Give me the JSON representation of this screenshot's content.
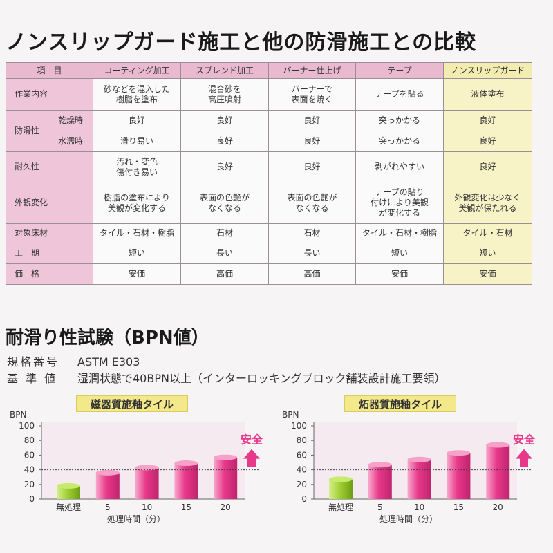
{
  "title": "ノンスリップガード施工と他の防滑施工との比較",
  "comparison": {
    "item_header": "項　目",
    "columns": [
      "コーティング加工",
      "スプレンド加工",
      "バーナー仕上げ",
      "テープ",
      "ノンスリップガード"
    ],
    "rows": [
      {
        "label": "作業内容",
        "values": [
          "砂などを混入した\n樹脂を塗布",
          "混合砂を\n高圧噴射",
          "バーナーで\n表面を焼く",
          "テープを貼る",
          "液体塗布"
        ]
      },
      {
        "label": "防滑性",
        "sub": "乾燥時",
        "values": [
          "良好",
          "良好",
          "良好",
          "突っかかる",
          "良好"
        ]
      },
      {
        "sub": "水濡時",
        "values": [
          "滑り易い",
          "良好",
          "良好",
          "突っかかる",
          "良好"
        ]
      },
      {
        "label": "耐久性",
        "values": [
          "汚れ・変色\n傷付き易い",
          "良好",
          "良好",
          "剥がれやすい",
          "良好"
        ]
      },
      {
        "label": "外観変化",
        "values": [
          "樹脂の塗布により\n美観が変化する",
          "表面の色艶が\nなくなる",
          "表面の色艶が\nなくなる",
          "テープの貼り\n付けにより美観\nが変化する",
          "外観変化は少なく\n美観が保たれる"
        ]
      },
      {
        "label": "対象床材",
        "values": [
          "タイル・石材・樹脂",
          "石材",
          "石材",
          "タイル・石材・樹脂",
          "タイル・石材"
        ]
      },
      {
        "label": "工　期",
        "values": [
          "短い",
          "長い",
          "長い",
          "短い",
          "短い"
        ]
      },
      {
        "label": "価　格",
        "values": [
          "安価",
          "高価",
          "高価",
          "安価",
          "安価"
        ]
      }
    ]
  },
  "test": {
    "heading": "耐滑り性試験（BPN値）",
    "spec_label": "規格番号",
    "spec_value": "ASTM E303",
    "standard_label": "基 準 値",
    "standard_value": "湿潤状態で40BPN以上（インターロッキングブロック舗装設計施工要領）"
  },
  "chart_data": [
    {
      "type": "bar",
      "title": "磁器質施釉タイル",
      "ylabel": "BPN",
      "xlabel": "処理時間（分）",
      "categories": [
        "無処理",
        "5",
        "10",
        "15",
        "20"
      ],
      "values": [
        18,
        36,
        43,
        49,
        57
      ],
      "ylim": [
        0,
        100
      ],
      "yticks": [
        0,
        20,
        40,
        60,
        80,
        100
      ],
      "threshold": 40,
      "safe_label": "安全",
      "colors": {
        "untreated": "#9ccc2e",
        "treated": "#e8388a"
      }
    },
    {
      "type": "bar",
      "title": "炻器質施釉タイル",
      "ylabel": "BPN",
      "xlabel": "処理時間（分）",
      "categories": [
        "無処理",
        "5",
        "10",
        "15",
        "20"
      ],
      "values": [
        27,
        47,
        54,
        63,
        74
      ],
      "ylim": [
        0,
        100
      ],
      "yticks": [
        0,
        20,
        40,
        60,
        80,
        100
      ],
      "threshold": 40,
      "safe_label": "安全",
      "colors": {
        "untreated": "#9ccc2e",
        "treated": "#e8388a"
      }
    }
  ]
}
